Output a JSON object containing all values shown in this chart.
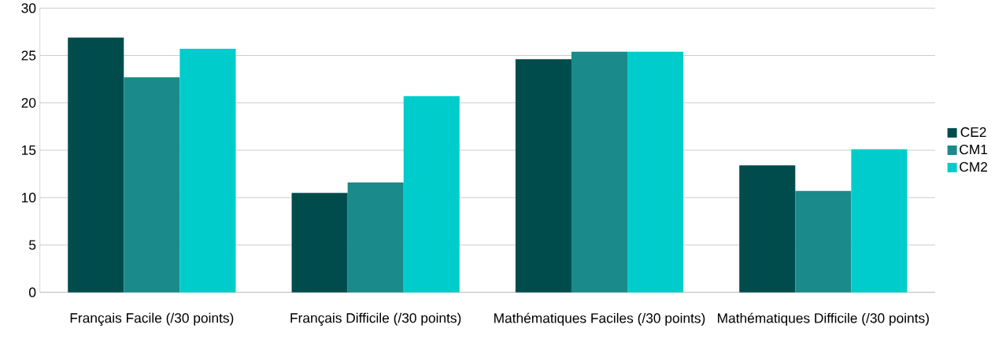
{
  "chart_data": {
    "type": "bar",
    "categories": [
      "Français Facile (/30 points)",
      "Français Difficile (/30 points)",
      "Mathématiques Faciles (/30 points)",
      "Mathématiques Difficile (/30 points)"
    ],
    "series": [
      {
        "name": "CE2",
        "color": "#004c4c",
        "values": [
          26.9,
          10.5,
          24.6,
          13.4
        ]
      },
      {
        "name": "CM1",
        "color": "#1a8a8a",
        "values": [
          22.7,
          11.6,
          25.4,
          10.7
        ]
      },
      {
        "name": "CM2",
        "color": "#00cccc",
        "values": [
          25.7,
          20.7,
          25.4,
          15.1
        ]
      }
    ],
    "ylim": [
      0,
      30
    ],
    "yticks": [
      0,
      5,
      10,
      15,
      20,
      25,
      30
    ],
    "grid": "y",
    "legend": "right"
  }
}
